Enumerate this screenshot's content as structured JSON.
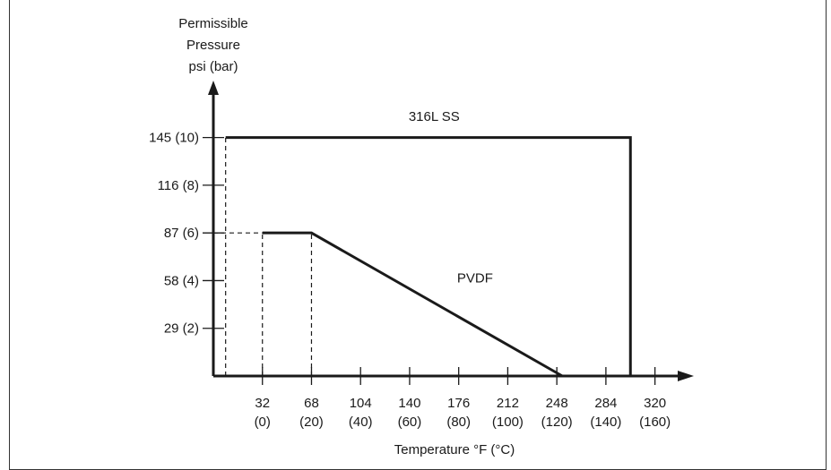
{
  "chart_data": {
    "type": "line",
    "title": "",
    "ylabel_lines": [
      "Permissible",
      "Pressure",
      "psi (bar)"
    ],
    "xlabel": "Temperature °F (°C)",
    "xlim": [
      -4,
      338
    ],
    "ylim": [
      0,
      172
    ],
    "y_ticks": [
      {
        "value": 29,
        "label": "29 (2)"
      },
      {
        "value": 58,
        "label": "58 (4)"
      },
      {
        "value": 87,
        "label": "87 (6)"
      },
      {
        "value": 116,
        "label": "116 (8)"
      },
      {
        "value": 145,
        "label": "145 (10)"
      }
    ],
    "x_ticks": [
      {
        "value": 32,
        "label": "32",
        "sublabel": "(0)"
      },
      {
        "value": 68,
        "label": "68",
        "sublabel": "(20)"
      },
      {
        "value": 104,
        "label": "104",
        "sublabel": "(40)"
      },
      {
        "value": 140,
        "label": "140",
        "sublabel": "(60)"
      },
      {
        "value": 176,
        "label": "176",
        "sublabel": "(80)"
      },
      {
        "value": 212,
        "label": "212",
        "sublabel": "(100)"
      },
      {
        "value": 248,
        "label": "248",
        "sublabel": "(120)"
      },
      {
        "value": 284,
        "label": "284",
        "sublabel": "(140)"
      },
      {
        "value": 320,
        "label": "320",
        "sublabel": "(160)"
      }
    ],
    "series": [
      {
        "name": "316L SS",
        "points": [
          [
            5,
            0
          ],
          [
            5,
            145
          ],
          [
            302,
            145
          ],
          [
            302,
            0
          ]
        ],
        "dashed_segment": [
          [
            5,
            0
          ],
          [
            5,
            145
          ]
        ]
      },
      {
        "name": "PVDF",
        "points": [
          [
            32,
            87
          ],
          [
            68,
            87
          ],
          [
            252,
            0
          ]
        ],
        "dashed_guides": [
          [
            [
              32,
              0
            ],
            [
              32,
              87
            ]
          ],
          [
            [
              68,
              0
            ],
            [
              68,
              87
            ]
          ],
          [
            [
              -4,
              87
            ],
            [
              32,
              87
            ]
          ]
        ]
      }
    ],
    "series_label_positions": {
      "316L SS": [
        158,
        155
      ],
      "PVDF": [
        188,
        57
      ]
    },
    "grid": false,
    "colors": {
      "line": "#1a1a1a"
    }
  }
}
